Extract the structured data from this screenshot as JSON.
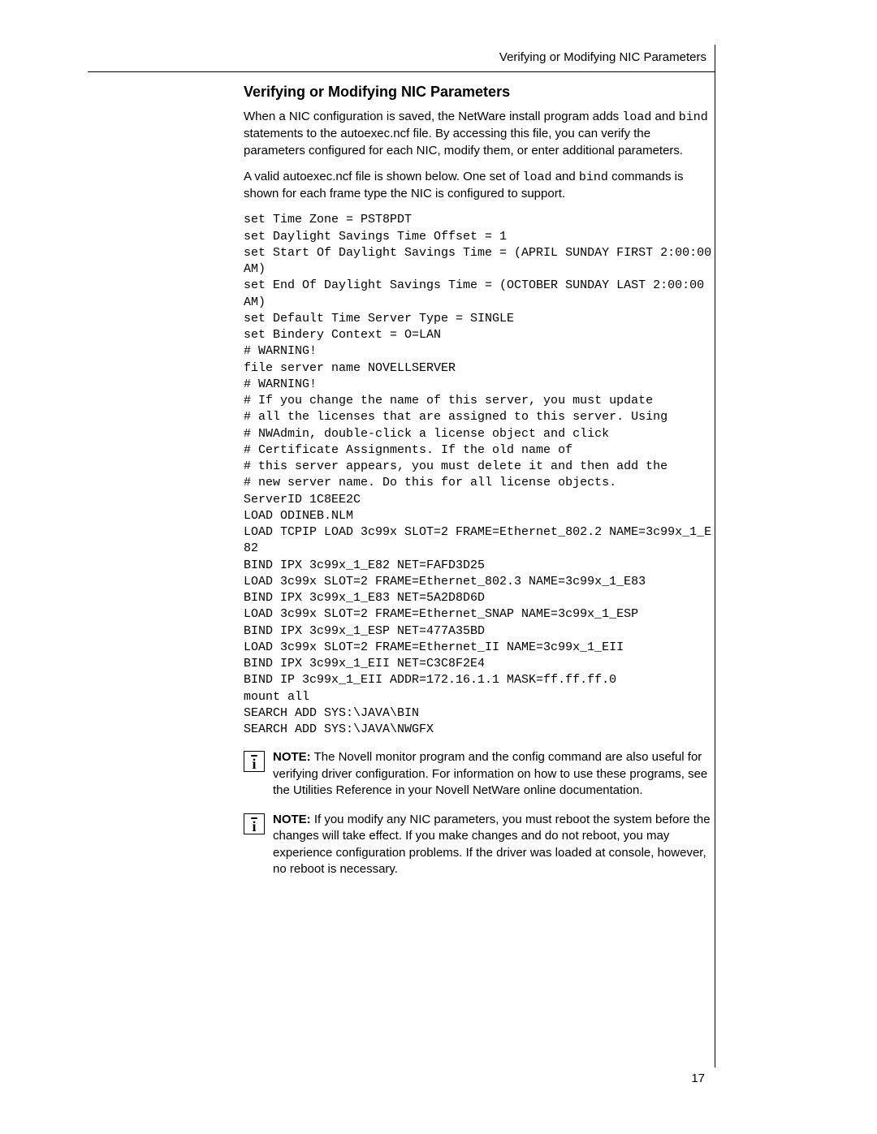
{
  "running_header": "Verifying or Modifying NIC Parameters",
  "heading": "Verifying or Modifying NIC Parameters",
  "para1_a": "When a NIC configuration is saved, the NetWare install program adds ",
  "para1_mono1": "load",
  "para1_b": " and ",
  "para1_mono2": "bind",
  "para1_c": " statements to the autoexec.ncf file. By accessing this file, you can verify the parameters configured for each NIC, modify them, or enter additional parameters.",
  "para2_a": "A valid autoexec.ncf file is shown below. One set of ",
  "para2_mono1": "load",
  "para2_b": " and ",
  "para2_mono2": "bind",
  "para2_c": " commands is shown for each frame type the NIC is configured to support.",
  "code": "set Time Zone = PST8PDT\nset Daylight Savings Time Offset = 1\nset Start Of Daylight Savings Time = (APRIL SUNDAY FIRST 2:00:00 AM)\nset End Of Daylight Savings Time = (OCTOBER SUNDAY LAST 2:00:00 AM)\nset Default Time Server Type = SINGLE\nset Bindery Context = O=LAN\n# WARNING!\nfile server name NOVELLSERVER\n# WARNING!\n# If you change the name of this server, you must update\n# all the licenses that are assigned to this server. Using\n# NWAdmin, double-click a license object and click\n# Certificate Assignments. If the old name of\n# this server appears, you must delete it and then add the\n# new server name. Do this for all license objects.\nServerID 1C8EE2C\nLOAD ODINEB.NLM\nLOAD TCPIP LOAD 3c99x SLOT=2 FRAME=Ethernet_802.2 NAME=3c99x_1_E82\nBIND IPX 3c99x_1_E82 NET=FAFD3D25\nLOAD 3c99x SLOT=2 FRAME=Ethernet_802.3 NAME=3c99x_1_E83\nBIND IPX 3c99x_1_E83 NET=5A2D8D6D\nLOAD 3c99x SLOT=2 FRAME=Ethernet_SNAP NAME=3c99x_1_ESP\nBIND IPX 3c99x_1_ESP NET=477A35BD\nLOAD 3c99x SLOT=2 FRAME=Ethernet_II NAME=3c99x_1_EII\nBIND IPX 3c99x_1_EII NET=C3C8F2E4\nBIND IP 3c99x_1_EII ADDR=172.16.1.1 MASK=ff.ff.ff.0\nmount all\nSEARCH ADD SYS:\\JAVA\\BIN\nSEARCH ADD SYS:\\JAVA\\NWGFX",
  "note1_label": "NOTE:",
  "note1_text": " The Novell monitor program and the config command are also useful for verifying driver configuration. For information on how to use these programs, see the Utilities Reference in your Novell NetWare online documentation.",
  "note2_label": "NOTE:",
  "note2_text": " If you modify any NIC parameters, you must reboot the system before the changes will take effect. If you make changes and do not reboot, you may experience configuration problems. If the driver was loaded at console, however, no reboot is necessary.",
  "page_number": "17",
  "info_glyph": "i"
}
